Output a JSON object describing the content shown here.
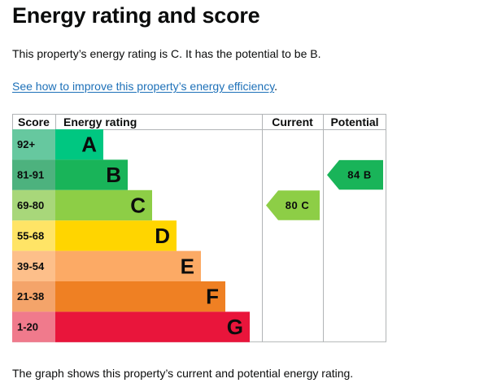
{
  "page": {
    "title": "Energy rating and score",
    "summary": "This property’s energy rating is C. It has the potential to be B.",
    "improve_link_text": "See how to improve this property’s energy efficiency",
    "improve_link_suffix": ".",
    "caption": "The graph shows this property’s current and potential energy rating."
  },
  "chart_data": {
    "type": "bar",
    "headers": {
      "score": "Score",
      "rating": "Energy rating",
      "current": "Current",
      "potential": "Potential"
    },
    "bands": [
      {
        "score": "92+",
        "letter": "A",
        "level": 1,
        "color": "#66c89f",
        "barColor": "#00c781",
        "letterColor": "#0b0c0c"
      },
      {
        "score": "81-91",
        "letter": "B",
        "level": 2,
        "color": "#4db27e",
        "barColor": "#19b459",
        "letterColor": "#0b0c0c"
      },
      {
        "score": "69-80",
        "letter": "C",
        "level": 3,
        "color": "#a8d77a",
        "barColor": "#8dce46",
        "letterColor": "#0b0c0c"
      },
      {
        "score": "55-68",
        "letter": "D",
        "level": 4,
        "color": "#ffe466",
        "barColor": "#ffd500",
        "letterColor": "#0b0c0c"
      },
      {
        "score": "39-54",
        "letter": "E",
        "level": 5,
        "color": "#fdbf8a",
        "barColor": "#fcaa65",
        "letterColor": "#0b0c0c"
      },
      {
        "score": "21-38",
        "letter": "F",
        "level": 6,
        "color": "#f4a46a",
        "barColor": "#ef8023",
        "letterColor": "#0b0c0c"
      },
      {
        "score": "1-20",
        "letter": "G",
        "level": 7,
        "color": "#f07a8c",
        "barColor": "#e9153b",
        "letterColor": "#0b0c0c"
      }
    ],
    "current": {
      "score": 80,
      "letter": "C",
      "label": "80 C",
      "color": "#8dce46"
    },
    "potential": {
      "score": 84,
      "letter": "B",
      "label": "84 B",
      "color": "#19b459"
    }
  }
}
